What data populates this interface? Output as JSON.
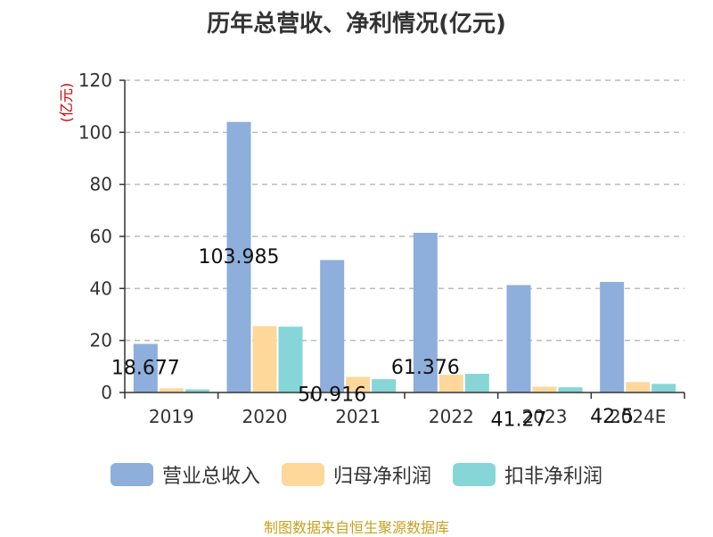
{
  "chart_data": {
    "type": "bar",
    "title": "历年总营收、净利情况(亿元)",
    "ylabel": "(亿元)",
    "xlabel": "",
    "categories": [
      "2019",
      "2020",
      "2021",
      "2022",
      "2023",
      "2024E"
    ],
    "ylim": [
      0,
      120
    ],
    "yticks": [
      0,
      20,
      40,
      60,
      80,
      100,
      120
    ],
    "grid": true,
    "legend_position": "bottom",
    "series": [
      {
        "name": "营业总收入",
        "color": "#8eaedb",
        "values": [
          18.677,
          103.985,
          50.916,
          61.376,
          41.27,
          42.5
        ],
        "labels": [
          "18.677",
          "103.985",
          "50.916",
          "61.376",
          "41.27",
          "42.5"
        ]
      },
      {
        "name": "归母净利润",
        "color": "#fdd89a",
        "values": [
          1.6,
          25.5,
          6.0,
          6.8,
          2.2,
          4.0
        ]
      },
      {
        "name": "扣非净利润",
        "color": "#86d6d8",
        "values": [
          1.2,
          25.3,
          5.1,
          7.2,
          2.0,
          3.3
        ]
      }
    ]
  },
  "source_note": "制图数据来自恒生聚源数据库"
}
